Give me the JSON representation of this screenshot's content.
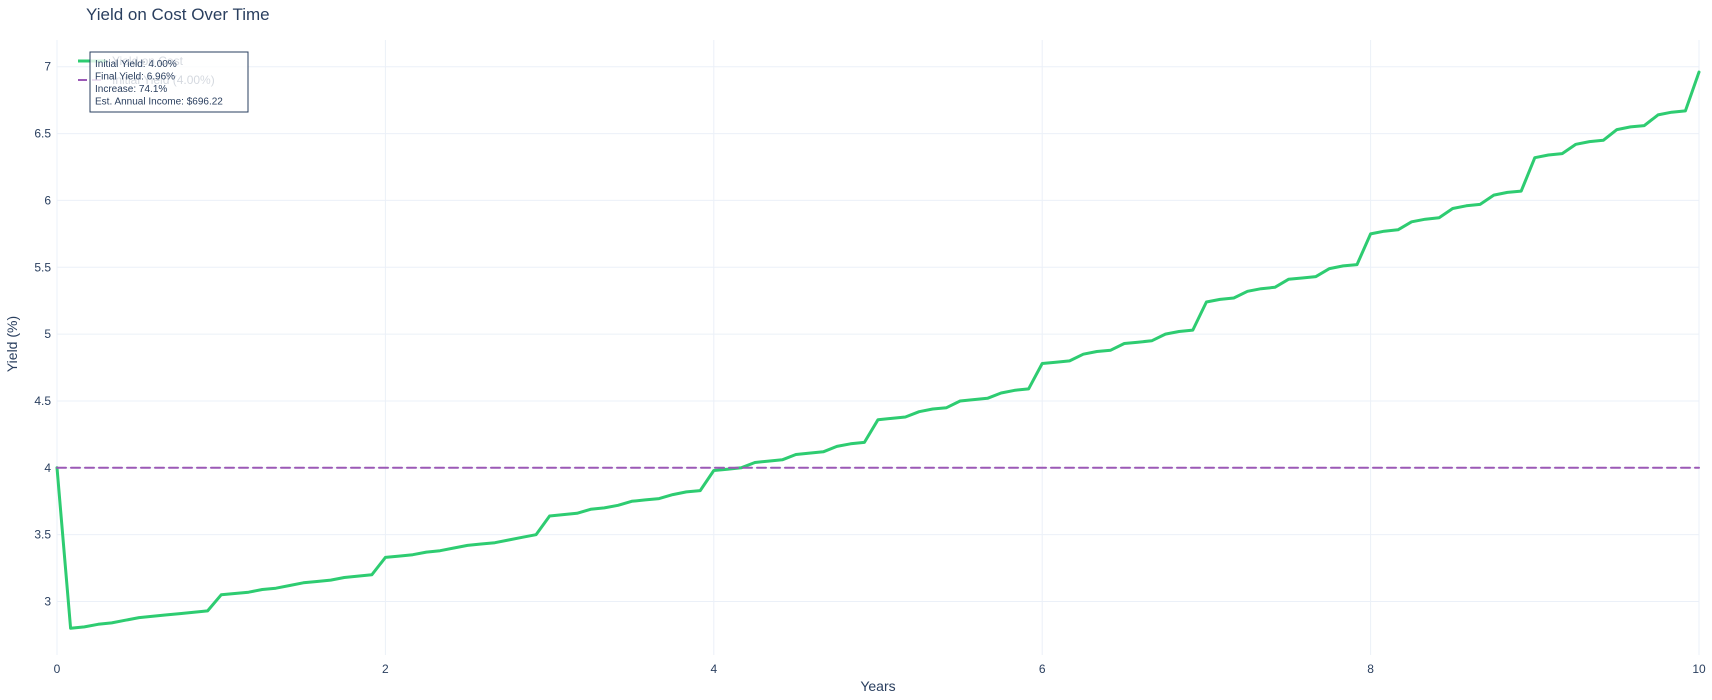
{
  "chart_data": {
    "type": "line",
    "title": "Yield on Cost Over Time",
    "xlabel": "Years",
    "ylabel": "Yield (%)",
    "xlim": [
      0,
      10
    ],
    "ylim": [
      2.6,
      7.2
    ],
    "x_ticks": [
      0,
      2,
      4,
      6,
      8,
      10
    ],
    "y_ticks": [
      3,
      3.5,
      4,
      4.5,
      5,
      5.5,
      6,
      6.5,
      7
    ],
    "grid": true,
    "legend": {
      "placement": "top-left"
    },
    "series": [
      {
        "name": "Yield on Cost",
        "color": "#2ecc71",
        "style": "solid",
        "x": [
          0,
          0.083,
          0.167,
          0.25,
          0.333,
          0.417,
          0.5,
          0.583,
          0.667,
          0.75,
          0.833,
          0.917,
          1,
          1.083,
          1.167,
          1.25,
          1.333,
          1.417,
          1.5,
          1.583,
          1.667,
          1.75,
          1.833,
          1.917,
          2,
          2.083,
          2.167,
          2.25,
          2.333,
          2.417,
          2.5,
          2.583,
          2.667,
          2.75,
          2.833,
          2.917,
          3,
          3.083,
          3.167,
          3.25,
          3.333,
          3.417,
          3.5,
          3.583,
          3.667,
          3.75,
          3.833,
          3.917,
          4,
          4.083,
          4.167,
          4.25,
          4.333,
          4.417,
          4.5,
          4.583,
          4.667,
          4.75,
          4.833,
          4.917,
          5,
          5.083,
          5.167,
          5.25,
          5.333,
          5.417,
          5.5,
          5.583,
          5.667,
          5.75,
          5.833,
          5.917,
          6,
          6.083,
          6.167,
          6.25,
          6.333,
          6.417,
          6.5,
          6.583,
          6.667,
          6.75,
          6.833,
          6.917,
          7,
          7.083,
          7.167,
          7.25,
          7.333,
          7.417,
          7.5,
          7.583,
          7.667,
          7.75,
          7.833,
          7.917,
          8,
          8.083,
          8.167,
          8.25,
          8.333,
          8.417,
          8.5,
          8.583,
          8.667,
          8.75,
          8.833,
          8.917,
          9,
          9.083,
          9.167,
          9.25,
          9.333,
          9.417,
          9.5,
          9.583,
          9.667,
          9.75,
          9.833,
          9.917,
          10
        ],
        "values": [
          4.0,
          2.8,
          2.81,
          2.83,
          2.84,
          2.86,
          2.88,
          2.89,
          2.9,
          2.91,
          2.92,
          2.93,
          3.05,
          3.06,
          3.07,
          3.09,
          3.1,
          3.12,
          3.14,
          3.15,
          3.16,
          3.18,
          3.19,
          3.2,
          3.33,
          3.34,
          3.35,
          3.37,
          3.38,
          3.4,
          3.42,
          3.43,
          3.44,
          3.46,
          3.48,
          3.5,
          3.64,
          3.65,
          3.66,
          3.69,
          3.7,
          3.72,
          3.75,
          3.76,
          3.77,
          3.8,
          3.82,
          3.83,
          3.98,
          3.99,
          4.0,
          4.04,
          4.05,
          4.06,
          4.1,
          4.11,
          4.12,
          4.16,
          4.18,
          4.19,
          4.36,
          4.37,
          4.38,
          4.42,
          4.44,
          4.45,
          4.5,
          4.51,
          4.52,
          4.56,
          4.58,
          4.59,
          4.78,
          4.79,
          4.8,
          4.85,
          4.87,
          4.88,
          4.93,
          4.94,
          4.95,
          5.0,
          5.02,
          5.03,
          5.24,
          5.26,
          5.27,
          5.32,
          5.34,
          5.35,
          5.41,
          5.42,
          5.43,
          5.49,
          5.51,
          5.52,
          5.75,
          5.77,
          5.78,
          5.84,
          5.86,
          5.87,
          5.94,
          5.96,
          5.97,
          6.04,
          6.06,
          6.07,
          6.32,
          6.34,
          6.35,
          6.42,
          6.44,
          6.45,
          6.53,
          6.55,
          6.56,
          6.64,
          6.66,
          6.67,
          6.96
        ]
      },
      {
        "name": "Initial Yield (4.00%)",
        "color": "#9b59b6",
        "style": "dashed",
        "x": [
          0,
          10
        ],
        "values": [
          4.0,
          4.0
        ]
      }
    ],
    "annotation": {
      "lines": [
        "Initial Yield: 4.00%",
        "Final Yield: 6.96%",
        "Increase: 74.1%",
        "Est. Annual Income: $696.22"
      ]
    }
  }
}
